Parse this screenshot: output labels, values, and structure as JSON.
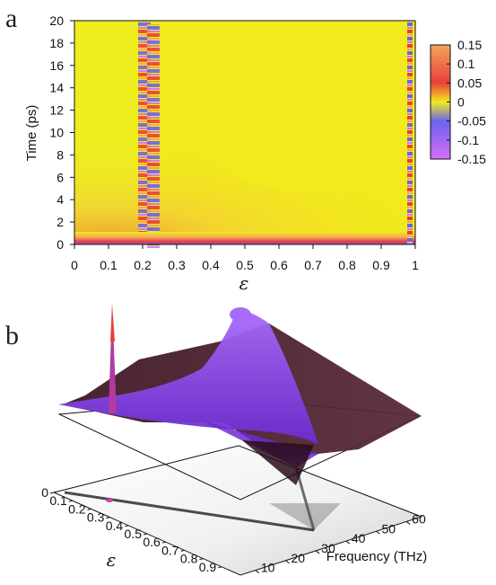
{
  "panels": {
    "a": "a",
    "b": "b"
  },
  "colors": {
    "positive_high": "#f5a35a",
    "positive_mid": "#e8403a",
    "zero": "#f2ea1c",
    "negative_mid": "#6a63f0",
    "negative_high": "#d66ef5",
    "surface": "#8e3ef0",
    "surface_dark": "#3a1522"
  },
  "chart_data": [
    {
      "type": "heatmap",
      "panel": "a",
      "xlabel": "ε",
      "ylabel": "Time (ps)",
      "xlim": [
        0,
        1
      ],
      "ylim": [
        0,
        20
      ],
      "xticks": [
        "0",
        "0.1",
        "0.2",
        "0.3",
        "0.4",
        "0.5",
        "0.6",
        "0.7",
        "0.8",
        "0.9",
        "1"
      ],
      "yticks": [
        "0",
        "2",
        "4",
        "6",
        "8",
        "10",
        "12",
        "14",
        "16",
        "18",
        "20"
      ],
      "colorbar": {
        "range": [
          -0.15,
          0.15
        ],
        "ticks": [
          "0.15",
          "0.1",
          "0.05",
          "0",
          "-0.05",
          "-0.1",
          "-0.15"
        ]
      },
      "features": {
        "oscillating_band_eps": [
          0.19,
          0.25
        ],
        "right_edge_band_eps": [
          0.975,
          0.99
        ],
        "background_value": 0
      }
    },
    {
      "type": "surface",
      "panel": "b",
      "xlabel": "Frequency (THz)",
      "ylabel": "ε",
      "xticks": [
        "10",
        "20",
        "30",
        "40",
        "50",
        "60"
      ],
      "yticks": [
        "0",
        "0.1",
        "0.2",
        "0.3",
        "0.4",
        "0.5",
        "0.6",
        "0.7",
        "0.8",
        "0.9"
      ],
      "xlim": [
        5,
        65
      ],
      "ylim": [
        0,
        1
      ]
    }
  ]
}
